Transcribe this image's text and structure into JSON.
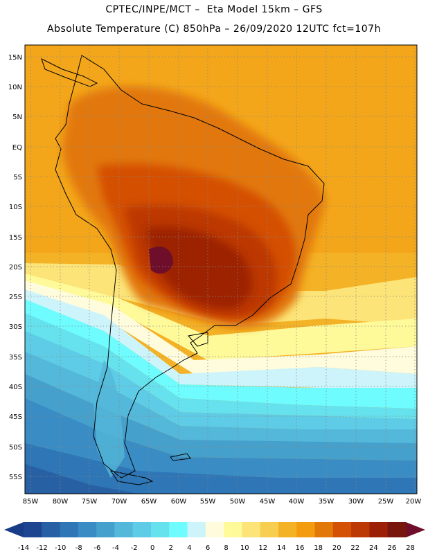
{
  "header": {
    "line1": "CPTEC/INPE/MCT –  Eta Model 15km – GFS",
    "line2": "Absolute Temperature (C) 850hPa – 26/09/2020 12UTC fct=107h"
  },
  "map": {
    "lat_labels": [
      "15N",
      "10N",
      "5N",
      "EQ",
      "5S",
      "10S",
      "15S",
      "20S",
      "25S",
      "30S",
      "35S",
      "40S",
      "45S",
      "50S",
      "55S"
    ],
    "lon_labels": [
      "85W",
      "80W",
      "75W",
      "70W",
      "65W",
      "60W",
      "55W",
      "50W",
      "45W",
      "40W",
      "35W",
      "30W",
      "25W",
      "20W"
    ],
    "field_units": "°C"
  },
  "colorbar": {
    "tick_labels": [
      "-14",
      "-12",
      "-10",
      "-8",
      "-6",
      "-4",
      "-2",
      "0",
      "2",
      "4",
      "6",
      "8",
      "10",
      "12",
      "14",
      "16",
      "18",
      "20",
      "22",
      "24",
      "26",
      "28"
    ],
    "colors": [
      "#1e4690",
      "#2860a4",
      "#2e76b6",
      "#3a8cc4",
      "#46a0cc",
      "#54b8da",
      "#5ecce6",
      "#66e2ee",
      "#6efcfe",
      "#cef4fb",
      "#fefcdc",
      "#fefa9a",
      "#fce478",
      "#f8ce50",
      "#f4b226",
      "#f49c10",
      "#e27808",
      "#d45004",
      "#bc3804",
      "#9c2006",
      "#78160e"
    ],
    "under_color": "#183c88",
    "over_color": "#6e0e2a"
  }
}
